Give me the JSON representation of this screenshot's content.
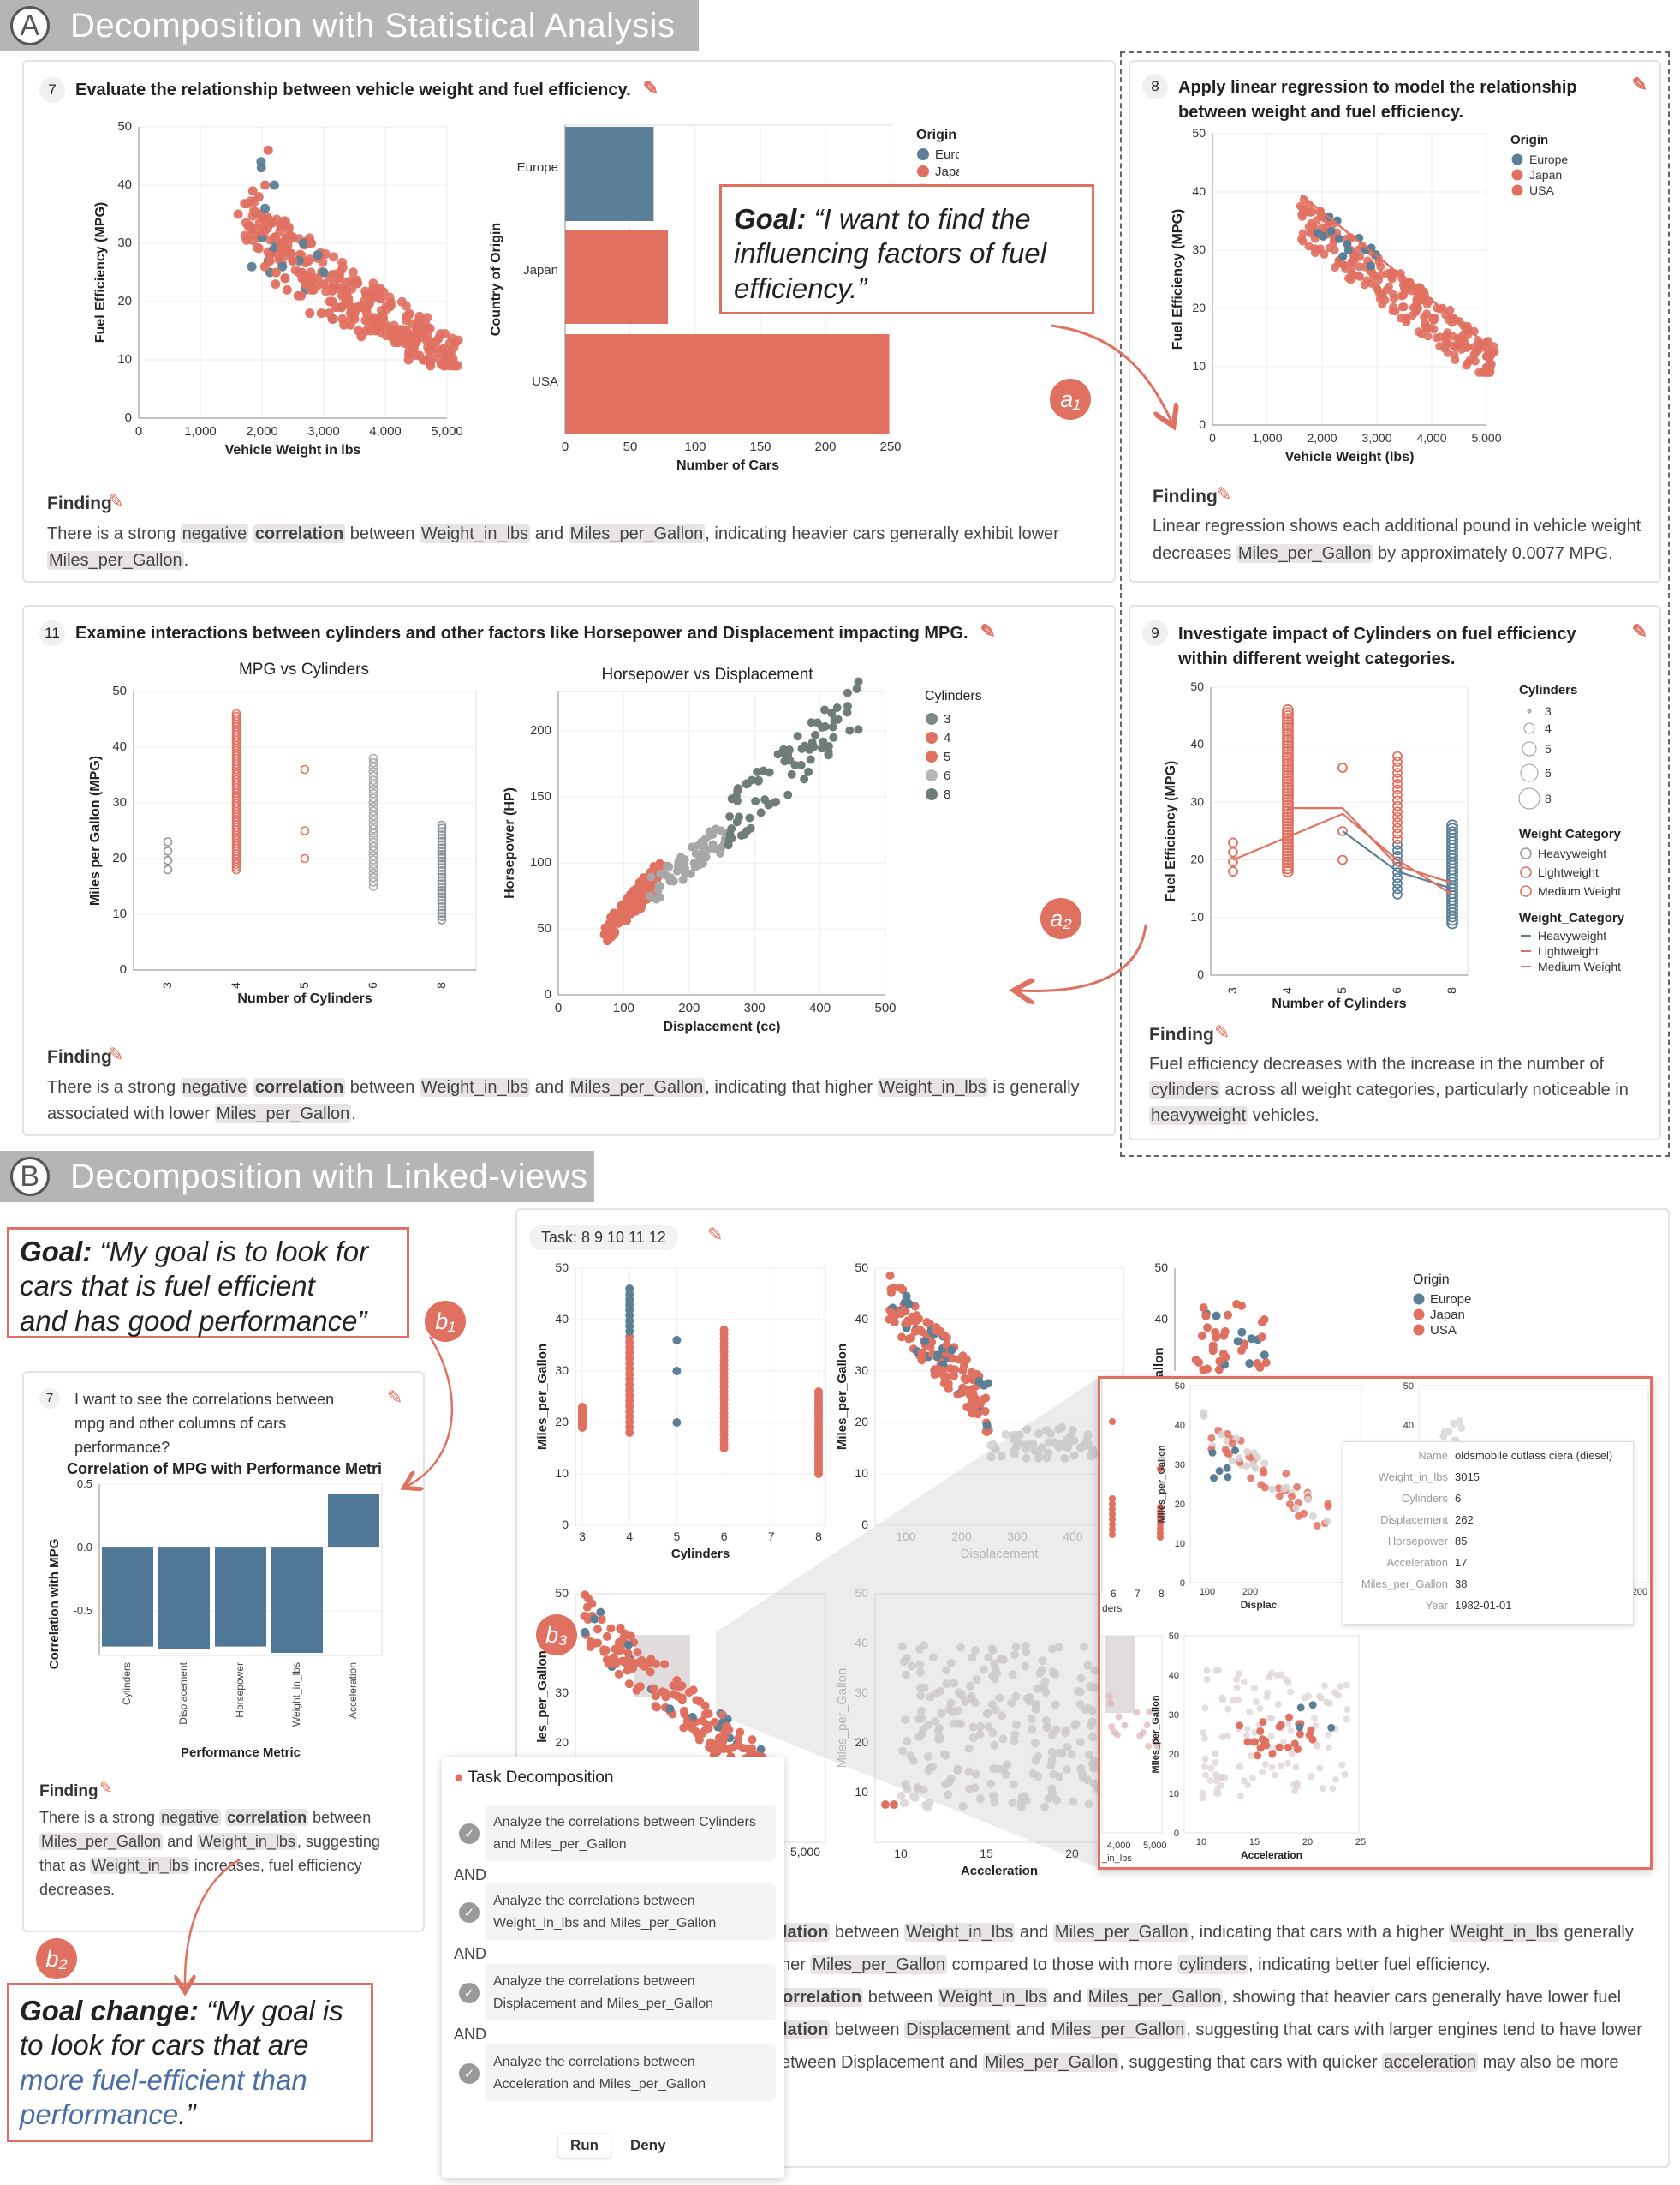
{
  "section_a": {
    "letter": "A",
    "title": "Decomposition with Statistical Analysis"
  },
  "section_b": {
    "letter": "B",
    "title": "Decomposition with Linked-views"
  },
  "task7": {
    "num": "7",
    "title": "Evaluate the relationship between vehicle weight and fuel efficiency.",
    "finding_label": "Finding",
    "finding_parts": [
      "There is a strong ",
      "negative",
      " ",
      "correlation",
      " between ",
      "Weight_in_lbs",
      " and ",
      "Miles_per_Gallon",
      ", indicating heavier cars generally exhibit lower ",
      "Miles_per_Gallon",
      "."
    ]
  },
  "task8": {
    "num": "8",
    "title_line1": "Apply linear regression to model the relationship",
    "title_line2": "between weight and fuel efficiency.",
    "finding_label": "Finding",
    "finding_parts": [
      "Linear regression shows each additional pound in vehicle weight decreases ",
      "Miles_per_Gallon",
      " by approximately 0.0077 MPG."
    ]
  },
  "task11": {
    "num": "11",
    "title": "Examine interactions between cylinders and other factors like Horsepower and Displacement impacting MPG.",
    "finding_label": "Finding",
    "finding_parts": [
      "There is a strong ",
      "negative",
      " ",
      "correlation",
      " between ",
      "Weight_in_lbs",
      " and ",
      "Miles_per_Gallon",
      ", indicating that higher ",
      "Weight_in_lbs",
      " is generally associated with lower ",
      "Miles_per_Gallon",
      "."
    ]
  },
  "task9": {
    "num": "9",
    "title_line1": "Investigate impact of Cylinders on fuel efficiency",
    "title_line2": "within different weight categories.",
    "finding_label": "Finding",
    "finding_parts": [
      "Fuel efficiency decreases with the increase in the number of ",
      "cylinders",
      " across all weight categories, particularly noticeable in ",
      "heavyweight",
      " vehicles."
    ]
  },
  "goal_a": {
    "label": "Goal:",
    "text_line1": " “I want to find the",
    "text_line2": "influencing factors of fuel",
    "text_line3": "efficiency.”"
  },
  "goal_b": {
    "label": "Goal:",
    "text_line1": " “My goal is to look for",
    "text_line2": "cars that is fuel efficient",
    "text_line3": "and has good performance”"
  },
  "goal_change": {
    "label": "Goal change:",
    "text_line1": " “My goal is",
    "text_line2": "to look for cars that are",
    "text_line3": "more fuel-efficient than",
    "text_line4": "performance",
    "text_end": ".”"
  },
  "badges": {
    "a1": "a₁",
    "a2": "a₂",
    "b1": "b₁",
    "b2": "b₂",
    "b3": "b₃"
  },
  "task7_b": {
    "num": "7",
    "q_line1": "I want to see the correlations between",
    "q_line2": "mpg and other columns of cars",
    "q_line3": "performance?",
    "chart_title": "Correlation of MPG with Performance Metri",
    "finding_label": "Finding",
    "finding_line1_parts": [
      "There is a strong ",
      "negative",
      " ",
      "correlation",
      " between"
    ],
    "finding_line2_parts": [
      "Miles_per_Gallon",
      " and ",
      "Weight_in_lbs",
      ", suggesting"
    ],
    "finding_line3_parts": [
      "that as ",
      "Weight_in_lbs",
      " increases, fuel efficiency"
    ],
    "finding_line4": "decreases."
  },
  "task_bar": {
    "label": "Task: 8 9 10 11 12"
  },
  "task_decomp": {
    "title": "Task Decomposition",
    "items": [
      {
        "line1": "Analyze the correlations between Cylinders",
        "line2": "and Miles_per_Gallon"
      },
      {
        "line1": "Analyze the correlations between",
        "line2": "Weight_in_lbs and Miles_per_Gallon"
      },
      {
        "line1": "Analyze the correlations between",
        "line2": "Displacement and Miles_per_Gallon"
      },
      {
        "line1": "Analyze the correlations between",
        "line2": "Acceleration and Miles_per_Gallon"
      }
    ],
    "and_label": "AND",
    "run": "Run",
    "deny": "Deny"
  },
  "tooltip": {
    "rows": [
      {
        "k": "Name",
        "v": "oldsmobile cutlass ciera (diesel)"
      },
      {
        "k": "Weight_in_lbs",
        "v": "3015"
      },
      {
        "k": "Cylinders",
        "v": "6"
      },
      {
        "k": "Displacement",
        "v": "262"
      },
      {
        "k": "Horsepower",
        "v": "85"
      },
      {
        "k": "Acceleration",
        "v": "17"
      },
      {
        "k": "Miles_per_Gallon",
        "v": "38"
      },
      {
        "k": "Year",
        "v": "1982-01-01"
      }
    ]
  },
  "b_findings": [
    {
      "parts": [
        "lation",
        " between ",
        "Weight_in_lbs",
        " and ",
        "Miles_per_Gallon",
        ", indicating that cars with a higher ",
        "Weight_in_lbs",
        " generally"
      ]
    },
    {
      "parts": [
        "her ",
        "Miles_per_Gallon",
        " compared to those with more ",
        "cylinders",
        ", indicating better fuel efficiency."
      ]
    },
    {
      "parts": [
        "orrelation",
        " between ",
        "Weight_in_lbs",
        " and ",
        "Miles_per_Gallon",
        ", showing that heavier cars generally have lower fuel"
      ]
    },
    {
      "parts": [
        "lation",
        " between ",
        "Displacement",
        " and ",
        "Miles_per_Gallon",
        ", suggesting that cars with larger engines tend to have lower"
      ]
    },
    {
      "parts": [
        "etween Displacement and ",
        "Miles_per_Gallon",
        ", suggesting that cars with quicker ",
        "acceleration",
        " may also be more"
      ]
    }
  ],
  "colors": {
    "europe": "#5b7f96",
    "japan": "#e07060",
    "usa": "#e07060",
    "usa_legend_faded": "#e8e8e8",
    "gray": "#8a9498",
    "accent": "#e07060"
  },
  "chart_data": [
    {
      "id": "a7_scatter",
      "type": "scatter",
      "xlabel": "Vehicle Weight in lbs",
      "ylabel": "Fuel Efficiency (MPG)",
      "xlim": [
        0,
        5000
      ],
      "ylim": [
        0,
        50
      ],
      "xticks": [
        "0",
        "1,000",
        "2,000",
        "3,000",
        "4,000",
        "5,000"
      ],
      "yticks": [
        "0",
        "10",
        "20",
        "30",
        "40",
        "50"
      ],
      "series": [
        {
          "name": "Europe",
          "points": [
            [
              1835,
              26
            ],
            [
              2130,
              25
            ],
            [
              2375,
              24
            ],
            [
              2234,
              30
            ],
            [
              2100,
              27
            ],
            [
              2190,
              29
            ],
            [
              2330,
              26
            ],
            [
              2000,
              31
            ],
            [
              1990,
              43
            ],
            [
              2050,
              36
            ],
            [
              2200,
              40
            ],
            [
              2700,
              22
            ],
            [
              3000,
              25
            ],
            [
              2900,
              28
            ],
            [
              3150,
              17
            ],
            [
              2670,
              30
            ],
            [
              1985,
              44
            ],
            [
              2600,
              27
            ]
          ]
        },
        {
          "name": "Japan",
          "points": [
            [
              2130,
              27
            ],
            [
              2372,
              24
            ],
            [
              1613,
              35
            ],
            [
              1800,
              33
            ],
            [
              2000,
              32
            ],
            [
              1950,
              38
            ],
            [
              2050,
              40
            ],
            [
              2100,
              34
            ],
            [
              2200,
              31
            ],
            [
              2300,
              33
            ],
            [
              1850,
              39
            ],
            [
              2400,
              29
            ],
            [
              2100,
              46
            ],
            [
              2500,
              27
            ],
            [
              2650,
              24
            ],
            [
              2800,
              30
            ]
          ]
        },
        {
          "name": "USA",
          "points": [
            [
              3504,
              18
            ],
            [
              3693,
              15
            ],
            [
              3436,
              18
            ],
            [
              3433,
              16
            ],
            [
              3449,
              17
            ],
            [
              4341,
              15
            ],
            [
              4354,
              14
            ],
            [
              4312,
              14
            ],
            [
              4425,
              14
            ],
            [
              3850,
              15
            ],
            [
              3563,
              15
            ],
            [
              3609,
              14
            ],
            [
              3761,
              15
            ],
            [
              3086,
              18
            ],
            [
              2833,
              22
            ],
            [
              2774,
              18
            ],
            [
              2587,
              21
            ],
            [
              3139,
              17
            ],
            [
              4615,
              10
            ],
            [
              4376,
              10
            ],
            [
              4382,
              11
            ],
            [
              4732,
              9
            ],
            [
              2648,
              25
            ],
            [
              2264,
              28
            ],
            [
              2228,
              25
            ],
            [
              2046,
              26
            ],
            [
              2634,
              21
            ],
            [
              3439,
              19
            ],
            [
              3329,
              16
            ],
            [
              3302,
              17
            ],
            [
              3288,
              19
            ],
            [
              4209,
              13
            ],
            [
              4464,
              12
            ],
            [
              4154,
              13
            ],
            [
              4096,
              14
            ],
            [
              4955,
              12
            ],
            [
              4746,
              13
            ],
            [
              5140,
              13
            ],
            [
              2962,
              18
            ],
            [
              2408,
              22
            ],
            [
              3282,
              19
            ],
            [
              3139,
              20
            ],
            [
              2220,
              23
            ],
            [
              2123,
              28
            ],
            [
              2310,
              29
            ],
            [
              2900,
              24
            ],
            [
              3400,
              20
            ],
            [
              3600,
              19
            ],
            [
              3800,
              17
            ],
            [
              4000,
              16
            ],
            [
              4200,
              14
            ],
            [
              2500,
              27
            ],
            [
              2700,
              23
            ],
            [
              2600,
              25
            ],
            [
              3100,
              20
            ],
            [
              3300,
              21
            ],
            [
              3700,
              18
            ],
            [
              4100,
              15
            ],
            [
              4500,
              13
            ],
            [
              2300,
              30
            ],
            [
              2800,
              22
            ],
            [
              3000,
              23
            ],
            [
              3200,
              19
            ],
            [
              3500,
              17
            ],
            [
              3900,
              16
            ]
          ]
        }
      ]
    },
    {
      "id": "a7_bar",
      "type": "bar",
      "xlabel": "Number of Cars",
      "ylabel": "Country of Origin",
      "xlim": [
        0,
        250
      ],
      "xticks": [
        "0",
        "50",
        "100",
        "150",
        "200",
        "250"
      ],
      "categories": [
        "Europe",
        "Japan",
        "USA"
      ],
      "values": [
        68,
        79,
        249
      ],
      "legend_title": "Origin",
      "legend": [
        "Europe",
        "Japan",
        "USA"
      ]
    },
    {
      "id": "a8_regression",
      "type": "scatter",
      "xlabel": "Vehicle Weight (lbs)",
      "ylabel": "Fuel Efficiency (MPG)",
      "xlim": [
        0,
        5000
      ],
      "ylim": [
        0,
        50
      ],
      "xticks": [
        "0",
        "1,000",
        "2,000",
        "3,000",
        "4,000",
        "5,000"
      ],
      "yticks": [
        "0",
        "10",
        "20",
        "30",
        "40",
        "50"
      ],
      "legend_title": "Origin",
      "legend": [
        "Europe",
        "Japan",
        "USA"
      ],
      "regression_line": [
        [
          1613,
          39.5
        ],
        [
          5140,
          12.8
        ]
      ]
    },
    {
      "id": "a11_mpg_cyl",
      "type": "scatter",
      "title": "MPG vs Cylinders",
      "xlabel": "Number of Cylinders",
      "ylabel": "Miles per Gallon (MPG)",
      "ylim": [
        0,
        50
      ],
      "xcategories": [
        "3",
        "4",
        "5",
        "6",
        "8"
      ],
      "yticks": [
        "0",
        "10",
        "20",
        "30",
        "40",
        "50"
      ],
      "ranges": [
        {
          "x": "3",
          "min": 18,
          "max": 23
        },
        {
          "x": "4",
          "min": 18,
          "max": 46
        },
        {
          "x": "5",
          "min": 20,
          "max": 36
        },
        {
          "x": "6",
          "min": 15,
          "max": 38
        },
        {
          "x": "8",
          "min": 9,
          "max": 26
        }
      ]
    },
    {
      "id": "a11_hp_disp",
      "type": "scatter",
      "title": "Horsepower vs Displacement",
      "xlabel": "Displacement (cc)",
      "ylabel": "Horsepower (HP)",
      "xlim": [
        0,
        500
      ],
      "ylim": [
        0,
        230
      ],
      "xticks": [
        "0",
        "100",
        "200",
        "300",
        "400",
        "500"
      ],
      "yticks": [
        "0",
        "50",
        "100",
        "150",
        "200"
      ],
      "legend_title": "Cylinders",
      "legend": [
        "3",
        "4",
        "5",
        "6",
        "8"
      ]
    },
    {
      "id": "a9_cyl_weight",
      "type": "line",
      "xlabel": "Number of Cylinders",
      "ylabel": "Fuel Efficiency (MPG)",
      "ylim": [
        0,
        50
      ],
      "xcategories": [
        "3",
        "4",
        "5",
        "6",
        "8"
      ],
      "yticks": [
        "0",
        "10",
        "20",
        "30",
        "40",
        "50"
      ],
      "legend_cyl_title": "Cylinders",
      "legend_cyl": [
        "3",
        "4",
        "5",
        "6",
        "8"
      ],
      "legend_wc_title": "Weight Category",
      "legend_wc": [
        "Heavyweight",
        "Lightweight",
        "Medium Weight"
      ],
      "legend_wc2_title": "Weight_Category",
      "legend_wc2": [
        "Heavyweight",
        "Lightweight",
        "Medium Weight"
      ],
      "series": [
        {
          "name": "Heavyweight",
          "values": [
            null,
            null,
            25,
            18,
            15
          ]
        },
        {
          "name": "Lightweight",
          "values": [
            20,
            24,
            28,
            20,
            14
          ]
        },
        {
          "name": "Medium Weight",
          "values": [
            null,
            29,
            29,
            19,
            16
          ]
        }
      ]
    },
    {
      "id": "b_corr_bar",
      "type": "bar",
      "xlabel": "Performance Metric",
      "ylabel": "Correlation with MPG",
      "ylim": [
        -0.85,
        0.5
      ],
      "yticks": [
        "0.5",
        "0.0",
        "-0.5"
      ],
      "categories": [
        "Cylinders",
        "Displacement",
        "Horsepower",
        "Weight_in_lbs",
        "Acceleration"
      ],
      "values": [
        -0.78,
        -0.8,
        -0.78,
        -0.83,
        0.42
      ]
    },
    {
      "id": "b_matrix",
      "type": "scatter",
      "panels": [
        {
          "xlabel": "Cylinders",
          "ylabel": "Miles_per_Gallon",
          "xticks": [
            "3",
            "4",
            "5",
            "6",
            "7",
            "8"
          ],
          "yticks": [
            "0",
            "10",
            "20",
            "30",
            "40",
            "50"
          ]
        },
        {
          "xlabel": "Displacement",
          "ylabel": "Miles_per_Gallon",
          "xticks": [
            "100",
            "200",
            "300",
            "400"
          ],
          "yticks": [
            "0",
            "10",
            "20",
            "30",
            "40",
            "50"
          ]
        },
        {
          "xlabel": "Acceleration",
          "ylabel": "Miles_per_Gallon",
          "xticks": [
            "10",
            "15",
            "20"
          ],
          "yticks": [
            "10",
            "20",
            "30",
            "40",
            "50"
          ]
        }
      ],
      "legend_title": "Origin",
      "legend": [
        "Europe",
        "Japan",
        "USA"
      ]
    }
  ]
}
